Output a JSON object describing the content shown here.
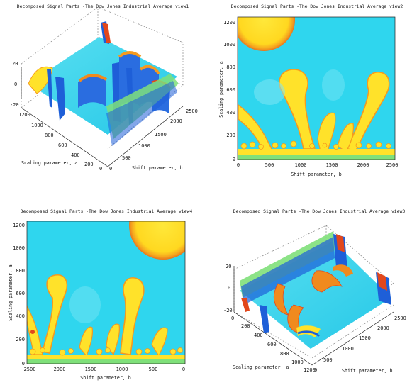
{
  "chart_data": [
    {
      "type": "surface3d",
      "title": "Decomposed Signal Parts -The Dow Jones Industrial Average view1",
      "xlabel": "Shift parameter, b",
      "ylabel": "Scaling parameter, a",
      "x_ticks": [
        "0",
        "500",
        "1000",
        "1500",
        "2000",
        "2500"
      ],
      "y_ticks": [
        "200",
        "400",
        "600",
        "800",
        "1000",
        "1200"
      ],
      "z_ticks": [
        "20",
        "0",
        "-20"
      ],
      "y_origin_label": "0",
      "xlim": [
        0,
        2500
      ],
      "ylim": [
        0,
        1200
      ],
      "zlim": [
        -20,
        20
      ]
    },
    {
      "type": "heatmap",
      "title": "Decomposed Signal Parts -The Dow Jones Industrial Average view2",
      "xlabel": "Shift parameter, b",
      "ylabel": "Scaling parameter, a",
      "x_ticks": [
        "0",
        "500",
        "1000",
        "1500",
        "2000",
        "2500"
      ],
      "y_ticks": [
        "0",
        "200",
        "400",
        "600",
        "800",
        "1000",
        "1200"
      ],
      "xlim": [
        0,
        2500
      ],
      "ylim": [
        0,
        1250
      ]
    },
    {
      "type": "heatmap",
      "title": "Decomposed Signal Parts -The Dow Jones Industrial Average view4",
      "xlabel": "Shift parameter, b",
      "ylabel": "Scaling parameter, a",
      "x_ticks": [
        "2500",
        "2000",
        "1500",
        "1000",
        "500",
        "0"
      ],
      "y_ticks": [
        "0",
        "200",
        "400",
        "600",
        "800",
        "1000",
        "1200"
      ],
      "xlim": [
        2500,
        0
      ],
      "ylim": [
        0,
        1250
      ]
    },
    {
      "type": "surface3d",
      "title": "Decomposed Signal Parts -The Dow Jones Industrial Average view3",
      "xlabel": "Shift parameter, b",
      "ylabel": "Scaling parameter, a",
      "x_ticks": [
        "0",
        "500",
        "1000",
        "1500",
        "2000",
        "2500"
      ],
      "y_ticks": [
        "0",
        "200",
        "400",
        "600",
        "800",
        "1000",
        "1200"
      ],
      "z_ticks": [
        "20",
        "0",
        "-20"
      ],
      "xlim": [
        0,
        2500
      ],
      "ylim": [
        0,
        1200
      ],
      "zlim": [
        -20,
        20
      ]
    }
  ],
  "colors": {
    "background_cyan": "#2fd6ee",
    "mid_cyan": "#6fe6f2",
    "yellow": "#ffe22a",
    "orange": "#f8a21e",
    "red": "#e2471c",
    "blue": "#1e5fd8",
    "green": "#7fe07a"
  }
}
